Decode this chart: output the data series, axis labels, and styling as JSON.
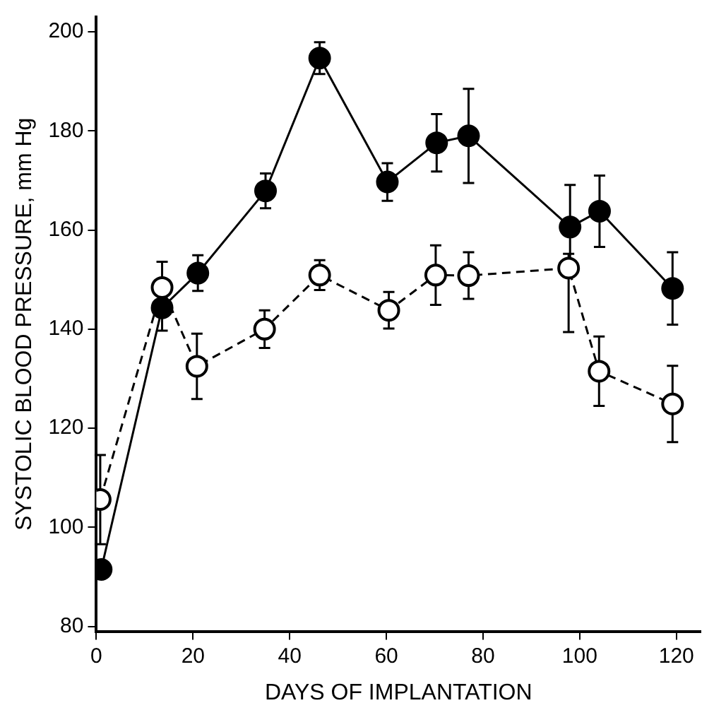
{
  "chart_data": {
    "type": "line",
    "xlabel": "DAYS OF IMPLANTATION",
    "ylabel": "SYSTOLIC BLOOD PRESSURE, mm Hg",
    "xlim": [
      0,
      125
    ],
    "ylim": [
      79,
      203
    ],
    "xticks": [
      0,
      20,
      40,
      60,
      80,
      100,
      120
    ],
    "yticks": [
      80,
      100,
      120,
      140,
      160,
      180,
      200
    ],
    "grid": false,
    "legend": false,
    "marker": "circle",
    "series": [
      {
        "color": "#000000",
        "line_style": "solid",
        "x": [
          1,
          13.6,
          21,
          35,
          46.2,
          60.2,
          70.4,
          77,
          98,
          104.1,
          119.2
        ],
        "values": [
          91.5,
          144.3,
          151.3,
          167.9,
          194.7,
          169.7,
          177.6,
          179,
          160.6,
          163.8,
          148.2
        ],
        "errors": [
          null,
          4.6,
          3.6,
          3.5,
          3.2,
          3.8,
          5.8,
          9.5,
          8.5,
          7.2,
          7.3
        ]
      },
      {
        "color": "#000000",
        "line_style": "dashed",
        "x": [
          0.8,
          13.6,
          20.8,
          34.8,
          46.2,
          60.5,
          70.2,
          77,
          97.7,
          104,
          119.2
        ],
        "values": [
          105.6,
          148.4,
          132.5,
          140,
          150.9,
          143.8,
          150.9,
          150.8,
          152.3,
          131.5,
          124.9
        ],
        "errors": [
          9,
          5.2,
          6.6,
          3.8,
          3,
          3.7,
          6,
          4.7,
          [
            139.4,
            155.2
          ],
          7,
          7.7
        ]
      }
    ]
  }
}
